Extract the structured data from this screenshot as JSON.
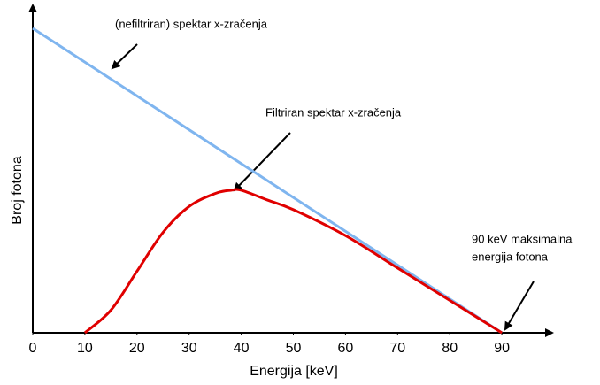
{
  "chart_data": {
    "type": "line",
    "xlabel": "Energija [keV]",
    "ylabel": "Broj fotona",
    "xlim": [
      0,
      100
    ],
    "ylim": [
      0,
      100
    ],
    "xticks": [
      0,
      10,
      20,
      30,
      40,
      50,
      60,
      70,
      80,
      90
    ],
    "series": [
      {
        "color": "#7fb5ef",
        "x": [
          0,
          90
        ],
        "values": [
          94,
          0
        ]
      },
      {
        "color": "#e00000",
        "x": [
          10,
          15,
          20,
          25,
          30,
          35,
          38,
          40,
          45,
          50,
          60,
          70,
          80,
          90
        ],
        "values": [
          0,
          7,
          19,
          31,
          39,
          43,
          44,
          44,
          41,
          38,
          30,
          20,
          10,
          0
        ]
      }
    ],
    "annotations": [
      {
        "lines": [
          "(nefiltriran) spektar x-zračenja"
        ]
      },
      {
        "lines": [
          "Filtriran spektar x-zračenja"
        ]
      },
      {
        "lines": [
          "90 keV maksimalna",
          "energija fotona"
        ]
      }
    ]
  }
}
